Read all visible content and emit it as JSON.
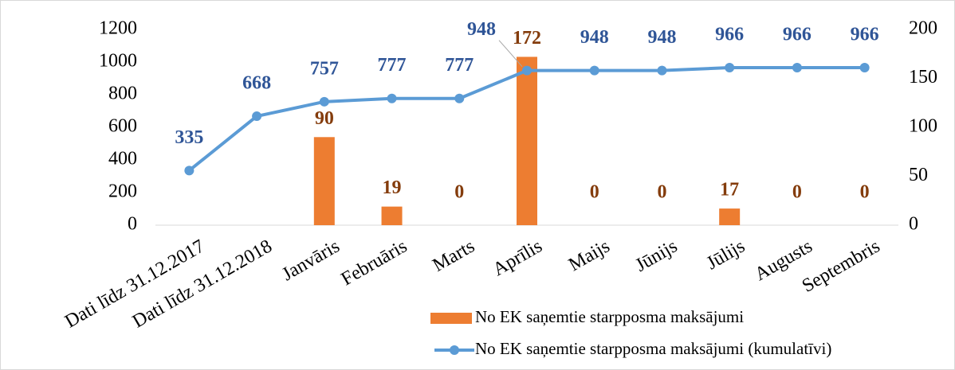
{
  "chart_data": {
    "type": "bar_line",
    "categories": [
      "Dati līdz 31.12.2017",
      "Dati līdz 31.12.2018",
      "Janvāris",
      "Februāris",
      "Marts",
      "Aprīlis",
      "Maijs",
      "Jūnijs",
      "Jūlijs",
      "Augusts",
      "Septembris"
    ],
    "series": [
      {
        "name": "No EK saņemtie starpposma maksājumi",
        "type": "bar",
        "axis": "y2",
        "color": "#ed7d31",
        "label_color": "#843c0c",
        "values": [
          null,
          null,
          90,
          19,
          0,
          172,
          0,
          0,
          17,
          0,
          0
        ]
      },
      {
        "name": "No EK saņemtie starpposma maksājumi (kumulatīvi)",
        "type": "line",
        "axis": "y",
        "color": "#5b9bd5",
        "label_color": "#2f5597",
        "values": [
          335,
          668,
          757,
          777,
          777,
          948,
          948,
          948,
          966,
          966,
          966
        ]
      }
    ],
    "ylim": [
      0,
      1200
    ],
    "yticks": [
      0,
      200,
      400,
      600,
      800,
      1000,
      1200
    ],
    "y2lim": [
      0,
      200
    ],
    "y2ticks": [
      0,
      50,
      100,
      150,
      200
    ],
    "grid": false,
    "legend": "bottom-right"
  }
}
